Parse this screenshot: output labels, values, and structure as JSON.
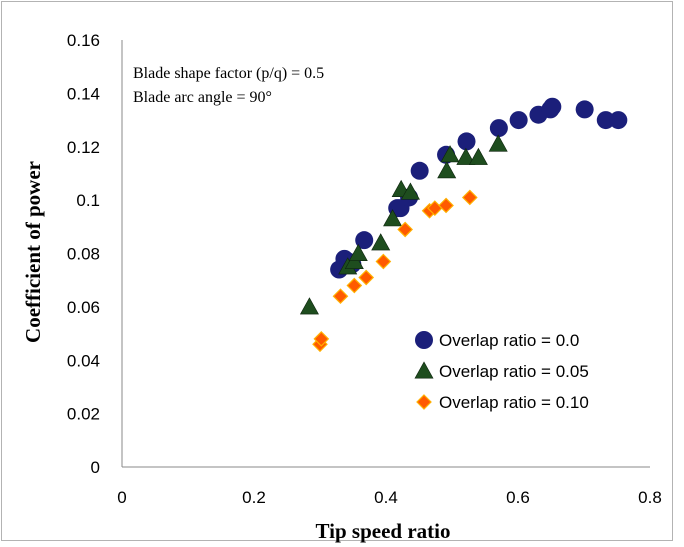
{
  "chart_data": {
    "type": "scatter",
    "xlabel": "Tip speed ratio",
    "ylabel": "Coefficient of power",
    "xlim": [
      0,
      0.8
    ],
    "ylim": [
      0,
      0.16
    ],
    "x_ticks": [
      "0",
      "0.2",
      "0.4",
      "0.6",
      "0.8"
    ],
    "y_ticks": [
      "0",
      "0.02",
      "0.04",
      "0.06",
      "0.08",
      "0.1",
      "0.12",
      "0.14",
      "0.16"
    ],
    "grid": false,
    "legend_position": "bottom-right",
    "annotations": [
      "Blade shape factor (p/q) = 0.5",
      "Blade arc angle = 90°"
    ],
    "series": [
      {
        "name": "Overlap ratio = 0.0",
        "marker": "circle",
        "color": "#1b1f7a",
        "points": [
          [
            0.329,
            0.074
          ],
          [
            0.337,
            0.078
          ],
          [
            0.343,
            0.077
          ],
          [
            0.349,
            0.076
          ],
          [
            0.367,
            0.085
          ],
          [
            0.417,
            0.097
          ],
          [
            0.422,
            0.097
          ],
          [
            0.435,
            0.101
          ],
          [
            0.451,
            0.111
          ],
          [
            0.491,
            0.117
          ],
          [
            0.522,
            0.122
          ],
          [
            0.571,
            0.127
          ],
          [
            0.601,
            0.13
          ],
          [
            0.631,
            0.132
          ],
          [
            0.649,
            0.134
          ],
          [
            0.652,
            0.135
          ],
          [
            0.701,
            0.134
          ],
          [
            0.733,
            0.13
          ],
          [
            0.752,
            0.13
          ]
        ]
      },
      {
        "name": "Overlap ratio = 0.05",
        "marker": "triangle",
        "color": "#1e4d1e",
        "points": [
          [
            0.284,
            0.06
          ],
          [
            0.342,
            0.075
          ],
          [
            0.352,
            0.077
          ],
          [
            0.358,
            0.08
          ],
          [
            0.392,
            0.084
          ],
          [
            0.41,
            0.093
          ],
          [
            0.423,
            0.104
          ],
          [
            0.437,
            0.103
          ],
          [
            0.492,
            0.111
          ],
          [
            0.497,
            0.117
          ],
          [
            0.521,
            0.116
          ],
          [
            0.54,
            0.116
          ],
          [
            0.57,
            0.121
          ]
        ]
      },
      {
        "name": "Overlap ratio = 0.10",
        "marker": "diamond",
        "color": "#ff5a00",
        "points": [
          [
            0.3,
            0.046
          ],
          [
            0.302,
            0.048
          ],
          [
            0.331,
            0.064
          ],
          [
            0.352,
            0.068
          ],
          [
            0.37,
            0.071
          ],
          [
            0.396,
            0.077
          ],
          [
            0.429,
            0.089
          ],
          [
            0.466,
            0.096
          ],
          [
            0.474,
            0.097
          ],
          [
            0.491,
            0.098
          ],
          [
            0.527,
            0.101
          ]
        ]
      }
    ]
  }
}
